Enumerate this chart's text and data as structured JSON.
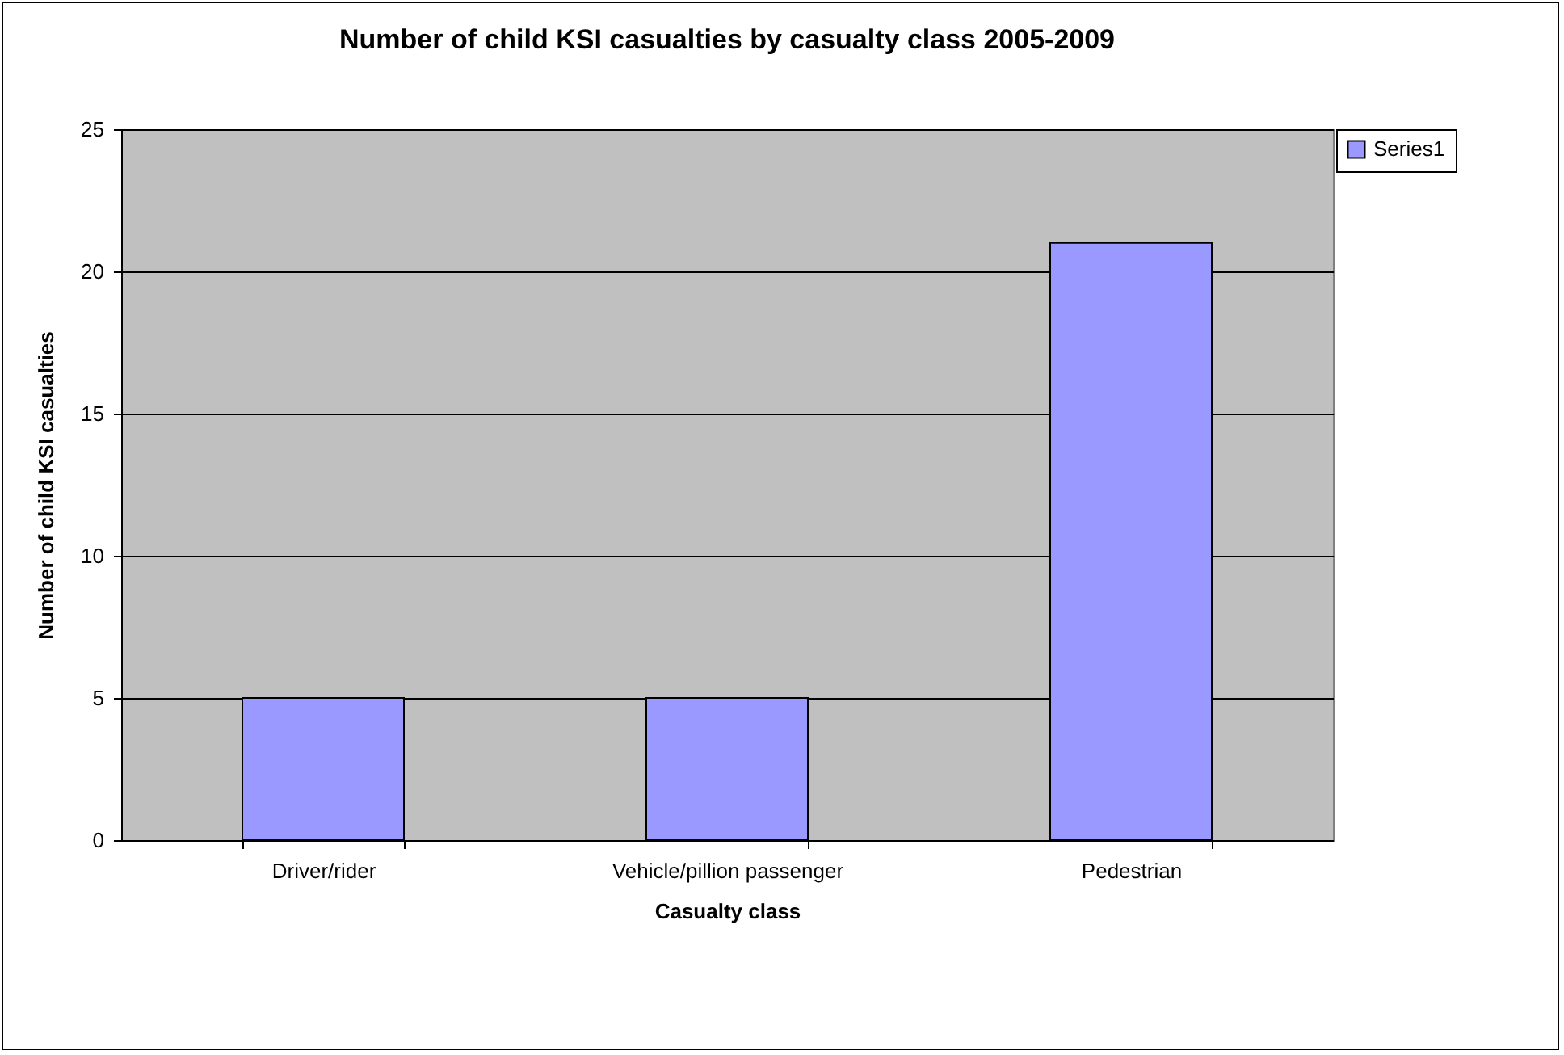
{
  "chart_data": {
    "type": "bar",
    "title": "Number of child KSI casualties by casualty class 2005-2009",
    "xlabel": "Casualty class",
    "ylabel": "Number of child KSI casualties",
    "categories": [
      "Driver/rider",
      "Vehicle/pillion passenger",
      "Pedestrian"
    ],
    "series": [
      {
        "name": "Series1",
        "color": "#9999ff",
        "values": [
          5,
          5,
          21
        ]
      }
    ],
    "ylim": [
      0,
      25
    ],
    "yticks": [
      0,
      5,
      10,
      15,
      20,
      25
    ],
    "grid": "y",
    "legend": "right"
  }
}
